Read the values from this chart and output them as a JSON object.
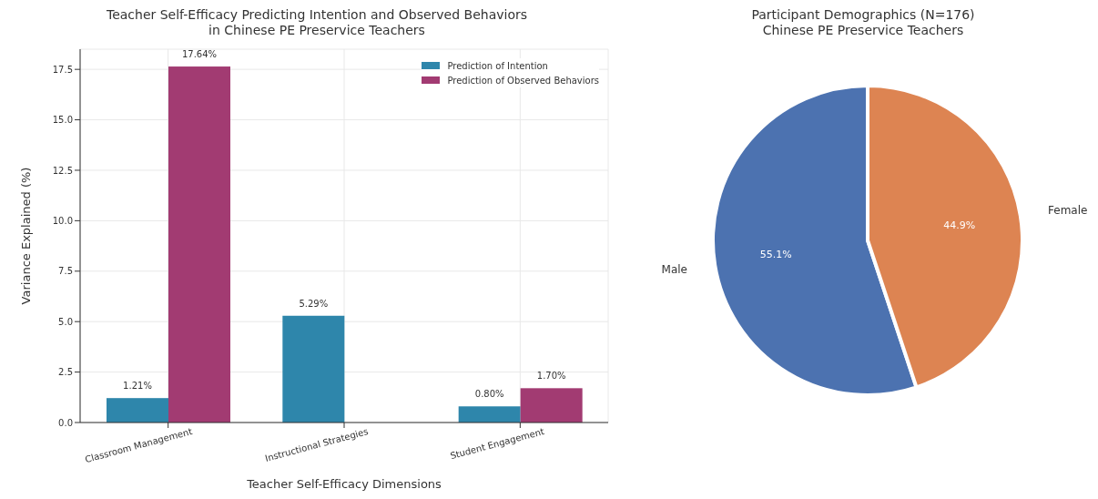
{
  "chart_data": [
    {
      "type": "bar",
      "title": "Teacher Self-Efficacy Predicting Intention and Observed Behaviors\nin Chinese PE Preservice Teachers",
      "xlabel": "Teacher Self-Efficacy Dimensions",
      "ylabel": "Variance Explained (%)",
      "categories": [
        "Classroom Management",
        "Instructional Strategies",
        "Student Engagement"
      ],
      "series": [
        {
          "name": "Prediction of Intention",
          "color": "#2e86ab",
          "values": [
            1.21,
            5.29,
            0.8
          ],
          "value_labels": [
            "1.21%",
            "5.29%",
            "0.80%"
          ]
        },
        {
          "name": "Prediction of Observed Behaviors",
          "color": "#a23b72",
          "values": [
            17.64,
            null,
            1.7
          ],
          "value_labels": [
            "17.64%",
            null,
            "1.70%"
          ]
        }
      ],
      "ylim": [
        0,
        18.5
      ],
      "yticks": [
        {
          "value": 0,
          "label": "0.0"
        },
        {
          "value": 2.5,
          "label": "2.5"
        },
        {
          "value": 5,
          "label": "5.0"
        },
        {
          "value": 7.5,
          "label": "7.5"
        },
        {
          "value": 10,
          "label": "10.0"
        },
        {
          "value": 12.5,
          "label": "12.5"
        },
        {
          "value": 15,
          "label": "15.0"
        },
        {
          "value": 17.5,
          "label": "17.5"
        }
      ],
      "grid": true,
      "legend": "top right"
    },
    {
      "type": "pie",
      "title": "Participant Demographics (N=176)\nChinese PE Preservice Teachers",
      "categories": [
        "Male",
        "Female"
      ],
      "values": [
        55.1,
        44.9
      ],
      "colors": [
        "#4c72b0",
        "#dd8452"
      ],
      "value_labels": [
        "55.1%",
        "44.9%"
      ]
    }
  ]
}
